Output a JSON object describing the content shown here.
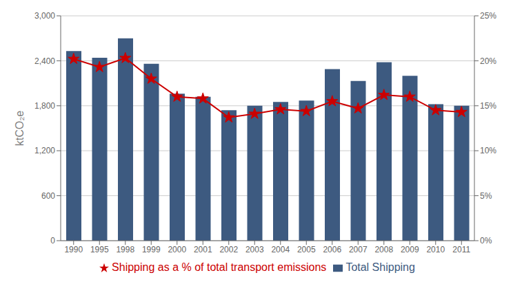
{
  "chart_data": {
    "type": "bar",
    "categories": [
      "1990",
      "1995",
      "1998",
      "1999",
      "2000",
      "2001",
      "2002",
      "2003",
      "2004",
      "2005",
      "2006",
      "2007",
      "2008",
      "2009",
      "2010",
      "2011"
    ],
    "ylabel": "ktCO₂e",
    "ylim": [
      0,
      3000
    ],
    "yticks": [
      0,
      600,
      {
        "value": 1200,
        "label": "1,200"
      },
      {
        "value": 1800,
        "label": "1,800"
      },
      {
        "value": 2400,
        "label": "2,400"
      },
      {
        "value": 3000,
        "label": "3,000"
      }
    ],
    "y2lim": [
      0,
      25
    ],
    "y2ticks": [
      {
        "value": 0,
        "label": "0%"
      },
      {
        "value": 5,
        "label": "5%"
      },
      {
        "value": 10,
        "label": "10%"
      },
      {
        "value": 15,
        "label": "15%"
      },
      {
        "value": 20,
        "label": "20%"
      },
      {
        "value": 25,
        "label": "25%"
      }
    ],
    "grid": true,
    "legend": "bottom",
    "series": [
      {
        "name": "Total Shipping",
        "type": "bar",
        "color": "#3D5A80",
        "values": [
          2530,
          2440,
          2700,
          2360,
          1960,
          1920,
          1740,
          1800,
          1850,
          1870,
          2290,
          2130,
          2380,
          2200,
          1820,
          1800
        ]
      },
      {
        "name": "Shipping as a % of total transport emissions",
        "type": "line",
        "axis": "y2",
        "color": "#CC0000",
        "marker": "star",
        "values": [
          20.2,
          19.3,
          20.3,
          18.0,
          16.0,
          15.8,
          13.7,
          14.1,
          14.6,
          14.4,
          15.5,
          14.7,
          16.2,
          16.0,
          14.5,
          14.3
        ]
      }
    ]
  }
}
